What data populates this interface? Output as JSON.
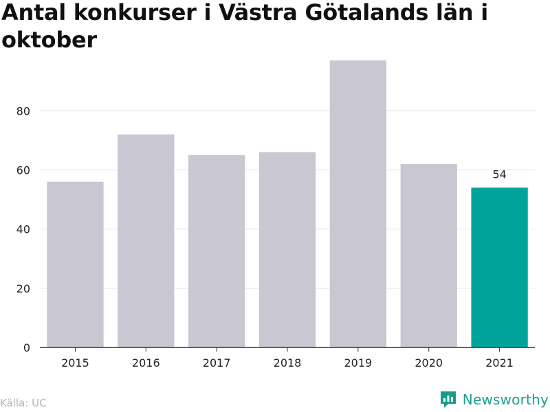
{
  "title": "Antal konkurser i Västra Götalands län i oktober",
  "source": "Källa: UC",
  "brand": {
    "name": "Newsworthy",
    "icon": "newsworthy-logo-icon",
    "color": "#169c8c"
  },
  "chart_data": {
    "type": "bar",
    "categories": [
      "2015",
      "2016",
      "2017",
      "2018",
      "2019",
      "2020",
      "2021"
    ],
    "values": [
      56,
      72,
      65,
      66,
      97,
      62,
      54
    ],
    "highlight_index": 6,
    "highlight_label": "54",
    "ylim": [
      0,
      97
    ],
    "yticks": [
      0,
      20,
      40,
      60,
      80
    ],
    "grid": true,
    "colors": {
      "bar": "#c8c7d2",
      "highlight": "#00a39a",
      "grid": "#e3e3e3",
      "axis": "#333333"
    }
  }
}
